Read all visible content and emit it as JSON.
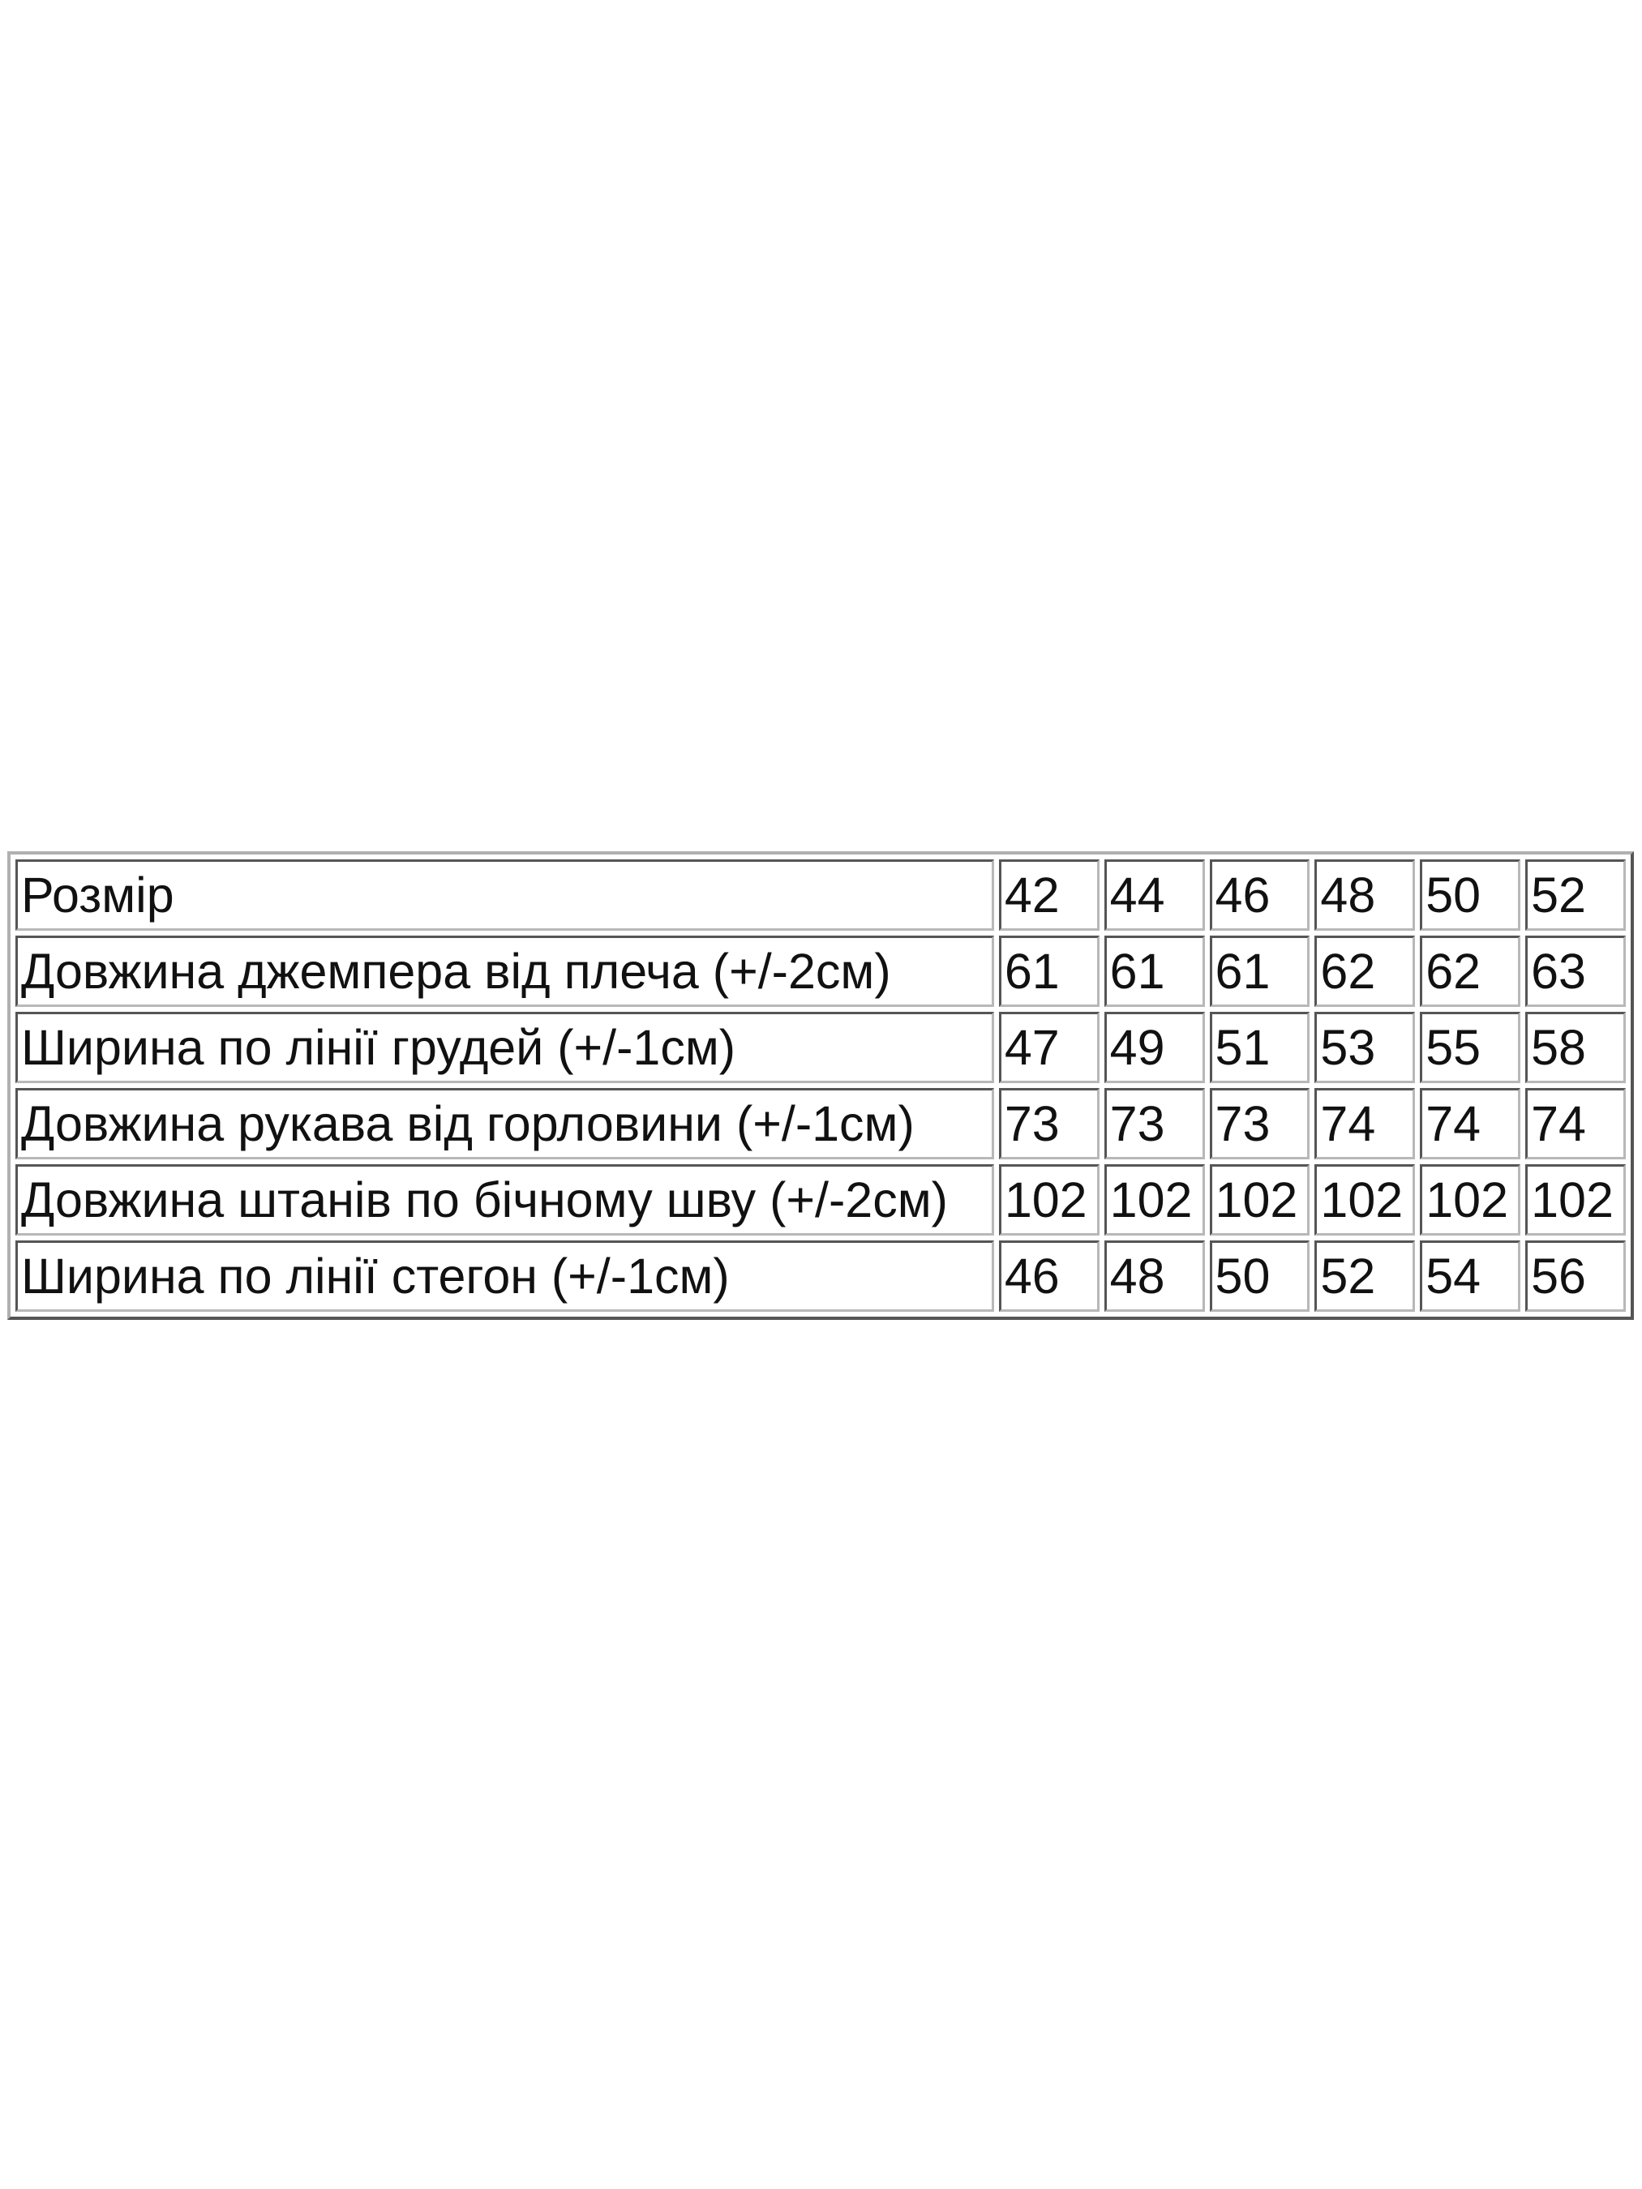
{
  "size_table": {
    "header": {
      "label": "Розмір",
      "sizes": [
        "42",
        "44",
        "46",
        "48",
        "50",
        "52"
      ]
    },
    "rows": [
      {
        "label": "Довжина джемпера від плеча (+/-2см)",
        "values": [
          "61",
          "61",
          "61",
          "62",
          "62",
          "63"
        ]
      },
      {
        "label": "Ширина по лінії грудей (+/-1см)",
        "values": [
          "47",
          "49",
          "51",
          "53",
          "55",
          "58"
        ]
      },
      {
        "label": "Довжина рукава від горловини (+/-1см)",
        "values": [
          "73",
          "73",
          "73",
          "74",
          "74",
          "74"
        ]
      },
      {
        "label": "Довжина штанів по бічному шву (+/-2см)",
        "values": [
          "102",
          "102",
          "102",
          "102",
          "102",
          "102"
        ]
      },
      {
        "label": "Ширина по лінії стегон (+/-1см)",
        "values": [
          "46",
          "48",
          "50",
          "52",
          "54",
          "56"
        ]
      }
    ]
  }
}
